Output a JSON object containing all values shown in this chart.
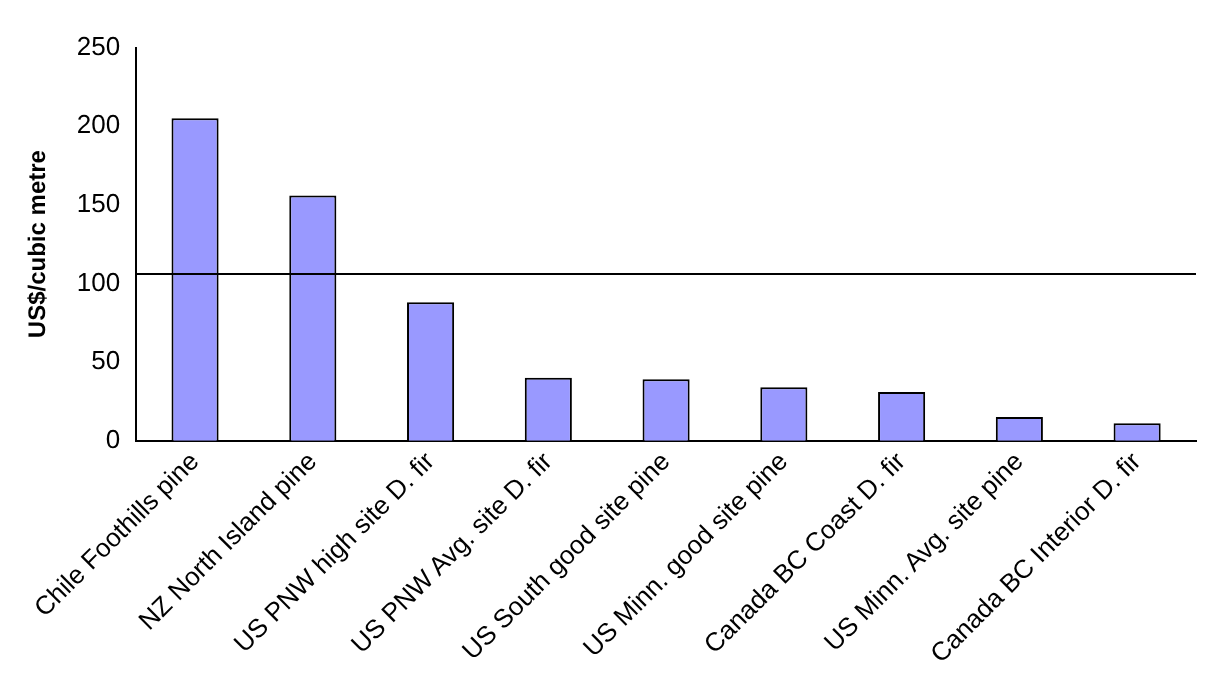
{
  "chart_data": {
    "type": "bar",
    "ylabel": "US$/cubic metre",
    "categories": [
      "Chile Foothills pine",
      "NZ North Island pine",
      "US PNW high site D. fir",
      "US PNW Avg. site D. fir",
      "US South good site pine",
      "US Minn. good site pine",
      "Canada BC Coast D. fir",
      "US Minn. Avg. site pine",
      "Canada BC Interior D. fir"
    ],
    "values": [
      205,
      156,
      88,
      40,
      39,
      34,
      31,
      15,
      11
    ],
    "color": "#9999ff",
    "ylim": [
      0,
      250
    ],
    "yticks": [
      0,
      50,
      100,
      150,
      200,
      250
    ],
    "grid": false,
    "legend": false,
    "ref_lines": [
      {
        "axis": "y",
        "value": 106,
        "color": "#000000"
      }
    ]
  }
}
